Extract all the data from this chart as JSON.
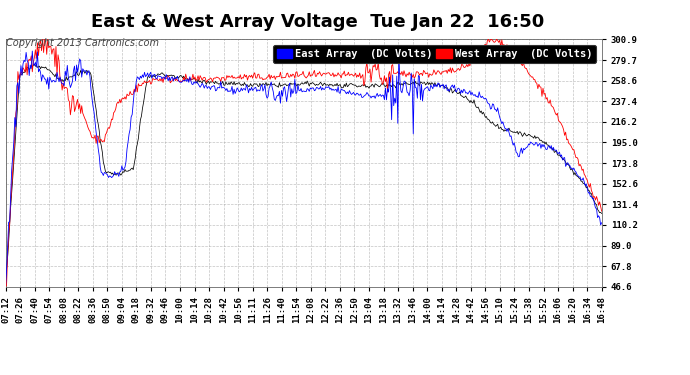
{
  "title": "East & West Array Voltage  Tue Jan 22  16:50",
  "copyright": "Copyright 2013 Cartronics.com",
  "legend_east": "East Array  (DC Volts)",
  "legend_west": "West Array  (DC Volts)",
  "east_color": "#0000ff",
  "west_color": "#ff0000",
  "black_color": "#000000",
  "bg_color": "#ffffff",
  "plot_bg_color": "#ffffff",
  "grid_color": "#aaaaaa",
  "ylim": [
    46.6,
    300.9
  ],
  "yticks": [
    46.6,
    67.8,
    89.0,
    110.2,
    131.4,
    152.6,
    173.8,
    195.0,
    216.2,
    237.4,
    258.6,
    279.7,
    300.9
  ],
  "x_tick_labels": [
    "07:12",
    "07:26",
    "07:40",
    "07:54",
    "08:08",
    "08:22",
    "08:36",
    "08:50",
    "09:04",
    "09:18",
    "09:32",
    "09:46",
    "10:00",
    "10:14",
    "10:28",
    "10:42",
    "10:56",
    "11:11",
    "11:26",
    "11:40",
    "11:54",
    "12:08",
    "12:22",
    "12:36",
    "12:50",
    "13:04",
    "13:18",
    "13:32",
    "13:46",
    "14:00",
    "14:14",
    "14:28",
    "14:42",
    "14:56",
    "15:10",
    "15:24",
    "15:38",
    "15:52",
    "16:06",
    "16:20",
    "16:34",
    "16:48"
  ],
  "title_fontsize": 13,
  "tick_fontsize": 6.5,
  "legend_fontsize": 7.5,
  "copyright_fontsize": 7
}
